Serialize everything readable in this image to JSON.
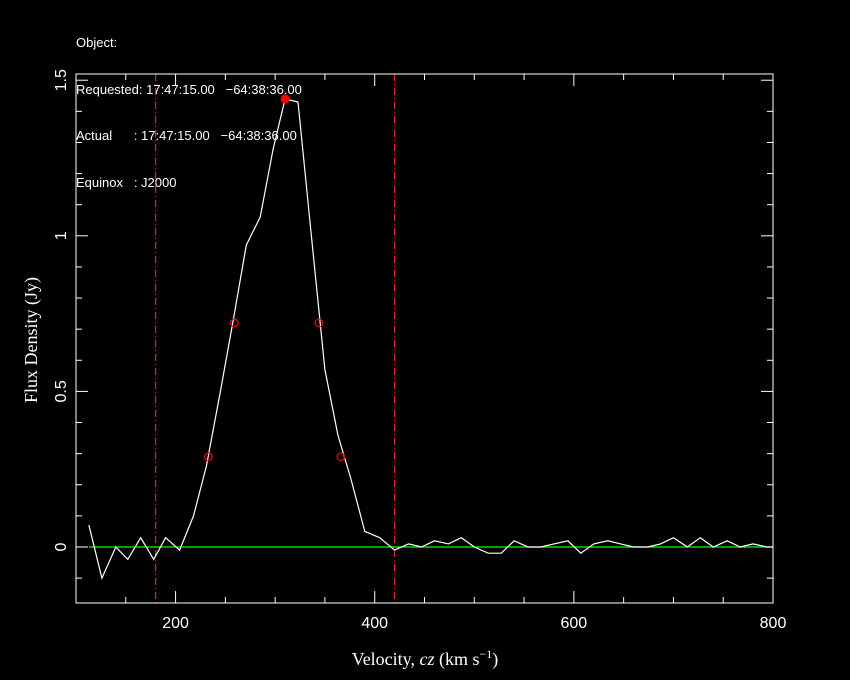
{
  "header": {
    "lines": [
      "Object:",
      "Requested: 17:47:15.00   −64:38:36.00",
      "Actual      : 17:47:15.00   −64:38:36.00",
      "Equinox   : J2000"
    ]
  },
  "chart_data": {
    "type": "line",
    "title": "",
    "xlabel": "Velocity, cz (km s⁻¹)",
    "ylabel": "Flux Density (Jy)",
    "xlim": [
      100,
      800
    ],
    "ylim": [
      -0.18,
      1.52
    ],
    "xticks": [
      200,
      400,
      600,
      800
    ],
    "yticks": [
      0,
      0.5,
      1,
      1.5
    ],
    "xtick_labels": [
      "200",
      "400",
      "600",
      "800"
    ],
    "ytick_labels": [
      "0",
      "0.5",
      "1",
      "1.5"
    ],
    "grid": false,
    "colors": {
      "spectrum": "#ffffff",
      "baseline": "#00ff00",
      "markers": "#ff0000",
      "peak": "#ff0000",
      "window": "#ff3333",
      "frame": "#ffffff"
    },
    "series": [
      {
        "x": [
          113,
          126,
          140,
          152,
          165,
          178,
          190,
          204,
          218,
          231,
          245,
          258,
          271,
          285,
          298,
          310,
          323,
          337,
          350,
          363,
          376,
          390,
          405,
          420,
          434,
          447,
          460,
          474,
          487,
          500,
          514,
          527,
          540,
          554,
          567,
          580,
          594,
          607,
          620,
          634,
          647,
          660,
          674,
          687,
          700,
          714,
          727,
          740,
          754,
          767,
          780,
          794,
          800
        ],
        "y": [
          0.07,
          -0.1,
          0.0,
          -0.04,
          0.03,
          -0.04,
          0.03,
          -0.01,
          0.1,
          0.26,
          0.5,
          0.73,
          0.97,
          1.06,
          1.28,
          1.44,
          1.43,
          0.98,
          0.57,
          0.36,
          0.22,
          0.05,
          0.03,
          -0.01,
          0.01,
          0.0,
          0.02,
          0.01,
          0.03,
          0.0,
          -0.02,
          -0.02,
          0.02,
          0.0,
          0.0,
          0.01,
          0.02,
          -0.02,
          0.01,
          0.02,
          0.01,
          0.0,
          0.0,
          0.01,
          0.03,
          0.0,
          0.03,
          0.0,
          0.02,
          0.0,
          0.01,
          0.0,
          0.0
        ]
      }
    ],
    "baseline": 0,
    "window": [
      180,
      420
    ],
    "peak": {
      "x": 310,
      "y": 1.44
    },
    "markers": [
      {
        "x": 233,
        "y": 0.29
      },
      {
        "x": 259,
        "y": 0.72
      },
      {
        "x": 344,
        "y": 0.72
      },
      {
        "x": 366,
        "y": 0.29
      }
    ]
  }
}
